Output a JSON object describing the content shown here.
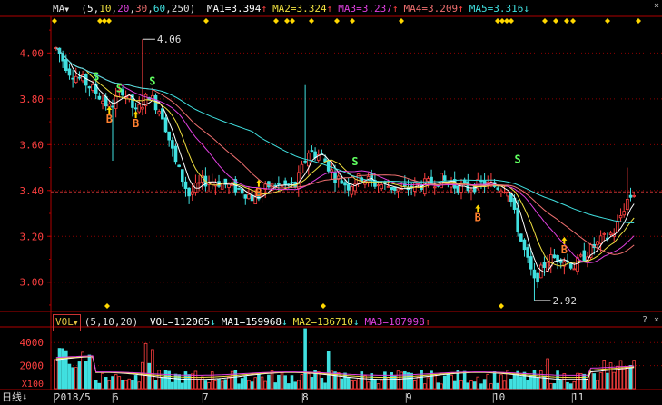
{
  "header": {
    "indicator": "MA",
    "dropdown_arrow": "▼",
    "params": "(5,10,20,30,60,250)",
    "params_parts": [
      "5",
      "10",
      "20",
      "30",
      "60",
      "250"
    ],
    "items": [
      {
        "label": "MA1=3.394",
        "arrow": "↑",
        "color": "#ffffff"
      },
      {
        "label": "MA2=3.324",
        "arrow": "↑",
        "color": "#f0e040"
      },
      {
        "label": "MA3=3.237",
        "arrow": "↑",
        "color": "#e040e0"
      },
      {
        "label": "MA4=3.209",
        "arrow": "↑",
        "color": "#f07070"
      },
      {
        "label": "MA5=3.316",
        "arrow": "↓",
        "color": "#40e0e0"
      }
    ]
  },
  "vol_header": {
    "label": "VOL",
    "dropdown_arrow": "▼",
    "params": "(5,10,20)",
    "items": [
      {
        "label": "VOL=112065",
        "arrow": "↓",
        "color": "#ffffff"
      },
      {
        "label": "MA1=159968",
        "arrow": "↓",
        "color": "#ffffff"
      },
      {
        "label": "MA2=136710",
        "arrow": "↓",
        "color": "#f0e040"
      },
      {
        "label": "MA3=107998",
        "arrow": "↑",
        "color": "#e040e0"
      }
    ]
  },
  "window_buttons": {
    "help": "?",
    "close": "×"
  },
  "price_axis": [
    "4.00",
    "3.80",
    "3.60",
    "3.40",
    "3.20",
    "3.00"
  ],
  "vol_axis": [
    "4000",
    "2000",
    "X100"
  ],
  "annotations": {
    "high": "4.06",
    "low": "2.92"
  },
  "signals": {
    "buy": "B",
    "sell": "S"
  },
  "bottom_bar": {
    "period": "日线",
    "period_arrow": "⬇",
    "dates": [
      "2018/5",
      "6",
      "7",
      "8",
      "9",
      "10",
      "11"
    ]
  },
  "colors": {
    "up": "#ff4040",
    "down": "#40e0e0",
    "grid": "#8b0000",
    "axis_text": "#ff4040",
    "ma1": "#ffffff",
    "ma2": "#f0e040",
    "ma3": "#e040e0",
    "ma4": "#f07070",
    "ma5": "#40e0e0",
    "signal": "#ffd700"
  },
  "chart_data": {
    "type": "candlestick",
    "ylim": [
      2.88,
      4.16
    ],
    "ticks": [
      3.0,
      3.2,
      3.4,
      3.6,
      3.8,
      4.0
    ],
    "price_path": [
      [
        0,
        4.02
      ],
      [
        4,
        3.92
      ],
      [
        8,
        3.88
      ],
      [
        12,
        3.83
      ],
      [
        16,
        3.76
      ],
      [
        20,
        3.84
      ],
      [
        24,
        3.74
      ],
      [
        28,
        3.82
      ],
      [
        32,
        3.73
      ],
      [
        36,
        3.52
      ],
      [
        40,
        3.38
      ],
      [
        44,
        3.44
      ],
      [
        48,
        3.44
      ],
      [
        52,
        3.42
      ],
      [
        56,
        3.4
      ],
      [
        60,
        3.36
      ],
      [
        64,
        3.42
      ],
      [
        68,
        3.42
      ],
      [
        72,
        3.42
      ],
      [
        76,
        3.57
      ],
      [
        80,
        3.55
      ],
      [
        84,
        3.46
      ],
      [
        88,
        3.42
      ],
      [
        92,
        3.46
      ],
      [
        96,
        3.43
      ],
      [
        100,
        3.42
      ],
      [
        104,
        3.4
      ],
      [
        108,
        3.42
      ],
      [
        112,
        3.43
      ],
      [
        116,
        3.45
      ],
      [
        120,
        3.42
      ],
      [
        124,
        3.41
      ],
      [
        128,
        3.43
      ],
      [
        132,
        3.42
      ],
      [
        136,
        3.41
      ],
      [
        140,
        3.18
      ],
      [
        144,
        3.0
      ],
      [
        148,
        3.1
      ],
      [
        152,
        3.11
      ],
      [
        156,
        3.07
      ],
      [
        160,
        3.13
      ],
      [
        164,
        3.18
      ],
      [
        168,
        3.22
      ],
      [
        172,
        3.36
      ],
      [
        174,
        3.39
      ]
    ],
    "last_price": 3.394,
    "vol_max": 5200
  }
}
